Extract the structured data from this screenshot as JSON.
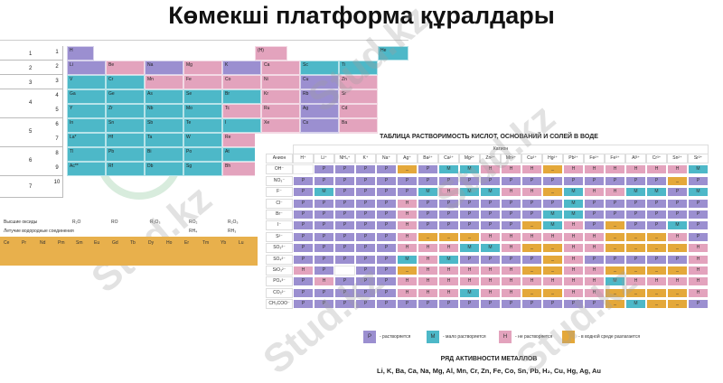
{
  "title": "Көмекші платформа құралдары",
  "watermark": "Stud.kz",
  "periodic": {
    "periods": [
      "1",
      "2",
      "3",
      "4",
      "5",
      "6",
      "7"
    ],
    "rows": [
      "1",
      "2",
      "3",
      "4",
      "5",
      "6",
      "7",
      "8",
      "9",
      "10"
    ],
    "formula_row": [
      "R₂O",
      "RO",
      "R₂O₃",
      "RO₂",
      "R₂O₅",
      "RO₃",
      "R₂O₇",
      "RO₄"
    ],
    "hydride_row": [
      "",
      "",
      "",
      "RH₄",
      "RH₃",
      "H₂R",
      "HR",
      ""
    ],
    "highlight": "Y",
    "cells": [
      {
        "t": "Li",
        "c": "P"
      },
      {
        "t": "Be",
        "c": "H"
      },
      {
        "t": "Na",
        "c": "P"
      },
      {
        "t": "Mg",
        "c": "H"
      },
      {
        "t": "K",
        "c": "P"
      },
      {
        "t": "Ca",
        "c": "H"
      },
      {
        "t": "Sc",
        "c": "M"
      },
      {
        "t": "Ti",
        "c": "M"
      },
      {
        "t": "V",
        "c": "M"
      },
      {
        "t": "Cr",
        "c": "M"
      },
      {
        "t": "Mn",
        "c": "H"
      },
      {
        "t": "Fe",
        "c": "H"
      },
      {
        "t": "Co",
        "c": "H"
      },
      {
        "t": "Ni",
        "c": "H"
      },
      {
        "t": "Cu",
        "c": "P"
      },
      {
        "t": "Zn",
        "c": "H"
      },
      {
        "t": "Ga",
        "c": "M"
      },
      {
        "t": "Ge",
        "c": "M"
      },
      {
        "t": "As",
        "c": "M"
      },
      {
        "t": "Se",
        "c": "M"
      },
      {
        "t": "Br",
        "c": "M"
      },
      {
        "t": "Kr",
        "c": "H"
      },
      {
        "t": "Rb",
        "c": "P"
      },
      {
        "t": "Sr",
        "c": "H"
      },
      {
        "t": "Y",
        "c": "M"
      },
      {
        "t": "Zr",
        "c": "M"
      },
      {
        "t": "Nb",
        "c": "M"
      },
      {
        "t": "Mo",
        "c": "M"
      },
      {
        "t": "Tc",
        "c": "H"
      },
      {
        "t": "Ru",
        "c": "H"
      },
      {
        "t": "Ag",
        "c": "P"
      },
      {
        "t": "Cd",
        "c": "H"
      },
      {
        "t": "In",
        "c": "M"
      },
      {
        "t": "Sn",
        "c": "M"
      },
      {
        "t": "Sb",
        "c": "M"
      },
      {
        "t": "Te",
        "c": "M"
      },
      {
        "t": "I",
        "c": "M"
      },
      {
        "t": "Xe",
        "c": "H"
      },
      {
        "t": "Cs",
        "c": "P"
      },
      {
        "t": "Ba",
        "c": "H"
      },
      {
        "t": "La*",
        "c": "M"
      },
      {
        "t": "Hf",
        "c": "M"
      },
      {
        "t": "Ta",
        "c": "M"
      },
      {
        "t": "W",
        "c": "M"
      },
      {
        "t": "Re",
        "c": "H"
      },
      {
        "t": "Os",
        "c": "H"
      },
      {
        "t": "Au",
        "c": "P"
      },
      {
        "t": "Hg",
        "c": "H"
      },
      {
        "t": "Tl",
        "c": "M"
      },
      {
        "t": "Pb",
        "c": "M"
      },
      {
        "t": "Bi",
        "c": "M"
      },
      {
        "t": "Po",
        "c": "M"
      },
      {
        "t": "At",
        "c": "M"
      },
      {
        "t": "Rn",
        "c": "H"
      },
      {
        "t": "Fr",
        "c": "P"
      },
      {
        "t": "Ra",
        "c": "H"
      },
      {
        "t": "Ac**",
        "c": "M"
      },
      {
        "t": "Rf",
        "c": "M"
      },
      {
        "t": "Db",
        "c": "M"
      },
      {
        "t": "Sg",
        "c": "M"
      },
      {
        "t": "Bh",
        "c": "H"
      },
      {
        "t": "Hs",
        "c": "H"
      }
    ],
    "lanthanides": [
      "Ce",
      "Pr",
      "Nd",
      "Pm",
      "Sm",
      "Eu",
      "Gd",
      "Tb",
      "Dy",
      "Ho",
      "Er",
      "Tm",
      "Yb",
      "Lu"
    ],
    "labels": {
      "oxides": "Высшие оксиды",
      "hydrides": "Летучие водородные соединения"
    }
  },
  "solubility": {
    "title": "ТАБЛИЦА РАСТВОРИМОСТЬ КИСЛОТ, ОСНОВАНИЙ И СОЛЕЙ В ВОДЕ",
    "cation_label": "Катион",
    "anion_label": "Анион",
    "cations": [
      "H⁺",
      "Li⁺",
      "NH₄⁺",
      "K⁺",
      "Na⁺",
      "Ag⁺",
      "Ba²⁺",
      "Ca²⁺",
      "Mg²⁺",
      "Zn²⁺",
      "Mn²⁺",
      "Cu²⁺",
      "Hg²⁺",
      "Pb²⁺",
      "Fe²⁺",
      "Fe³⁺",
      "Al³⁺",
      "Cr³⁺",
      "Sn²⁺",
      "Sr²⁺"
    ],
    "anions": [
      "OH⁻",
      "NO₃⁻",
      "F⁻",
      "Cl⁻",
      "Br⁻",
      "I⁻",
      "S²⁻",
      "SO₃²⁻",
      "SO₄²⁻",
      "SiO₃²⁻",
      "PO₄³⁻",
      "CO₃²⁻",
      "CH₃COO⁻"
    ],
    "rows": [
      [
        "x",
        "P",
        "P",
        "P",
        "P",
        "D",
        "P",
        "M",
        "M",
        "H",
        "H",
        "H",
        "D",
        "H",
        "H",
        "H",
        "H",
        "H",
        "H",
        "M"
      ],
      [
        "P",
        "P",
        "P",
        "P",
        "P",
        "P",
        "P",
        "P",
        "P",
        "P",
        "P",
        "P",
        "P",
        "P",
        "P",
        "P",
        "P",
        "P",
        "D",
        "P"
      ],
      [
        "P",
        "M",
        "P",
        "P",
        "P",
        "P",
        "M",
        "H",
        "M",
        "M",
        "H",
        "H",
        "D",
        "M",
        "H",
        "H",
        "M",
        "M",
        "P",
        "M"
      ],
      [
        "P",
        "P",
        "P",
        "P",
        "P",
        "H",
        "P",
        "P",
        "P",
        "P",
        "P",
        "P",
        "P",
        "M",
        "P",
        "P",
        "P",
        "P",
        "P",
        "P"
      ],
      [
        "P",
        "P",
        "P",
        "P",
        "P",
        "H",
        "P",
        "P",
        "P",
        "P",
        "P",
        "P",
        "M",
        "M",
        "P",
        "P",
        "P",
        "P",
        "P",
        "P"
      ],
      [
        "P",
        "P",
        "P",
        "P",
        "P",
        "H",
        "P",
        "P",
        "P",
        "P",
        "P",
        "D",
        "M",
        "H",
        "P",
        "D",
        "P",
        "P",
        "M",
        "P"
      ],
      [
        "P",
        "P",
        "P",
        "P",
        "P",
        "H",
        "D",
        "D",
        "D",
        "H",
        "H",
        "H",
        "H",
        "H",
        "H",
        "D",
        "D",
        "D",
        "H",
        "P"
      ],
      [
        "P",
        "P",
        "P",
        "P",
        "P",
        "H",
        "H",
        "H",
        "M",
        "M",
        "H",
        "D",
        "D",
        "H",
        "H",
        "D",
        "D",
        "D",
        "D",
        "H"
      ],
      [
        "P",
        "P",
        "P",
        "P",
        "P",
        "M",
        "H",
        "M",
        "P",
        "P",
        "P",
        "P",
        "D",
        "H",
        "P",
        "P",
        "P",
        "P",
        "P",
        "H"
      ],
      [
        "H",
        "P",
        "x",
        "P",
        "P",
        "D",
        "H",
        "H",
        "H",
        "H",
        "H",
        "D",
        "D",
        "H",
        "H",
        "D",
        "D",
        "D",
        "D",
        "H"
      ],
      [
        "P",
        "H",
        "P",
        "P",
        "P",
        "H",
        "H",
        "H",
        "H",
        "H",
        "H",
        "H",
        "H",
        "H",
        "H",
        "M",
        "H",
        "H",
        "H",
        "H"
      ],
      [
        "P",
        "P",
        "P",
        "P",
        "P",
        "H",
        "H",
        "H",
        "M",
        "H",
        "H",
        "D",
        "D",
        "H",
        "H",
        "D",
        "D",
        "D",
        "D",
        "H"
      ],
      [
        "P",
        "P",
        "P",
        "P",
        "P",
        "P",
        "P",
        "P",
        "P",
        "P",
        "P",
        "P",
        "P",
        "P",
        "P",
        "D",
        "M",
        "D",
        "D",
        "P"
      ]
    ],
    "legend": [
      {
        "code": "P",
        "text": "- растворяется"
      },
      {
        "code": "M",
        "text": "- мало растворяется"
      },
      {
        "code": "H",
        "text": "- не растворяется"
      },
      {
        "code": "_",
        "text": "- в водной среде разлагается"
      }
    ],
    "series_title": "РЯД АКТИВНОСТИ МЕТАЛЛОВ",
    "series": "Li, K, Ba, Ca, Na, Mg, Al, Mn, Cr, Zn, Fe, Co, Sn, Pb, H₂, Cu, Hg, Ag, Au"
  },
  "colors": {
    "P": "#9b8fd0",
    "M": "#4db8c8",
    "H": "#e3a3bd",
    "D": "#e4a83a"
  }
}
